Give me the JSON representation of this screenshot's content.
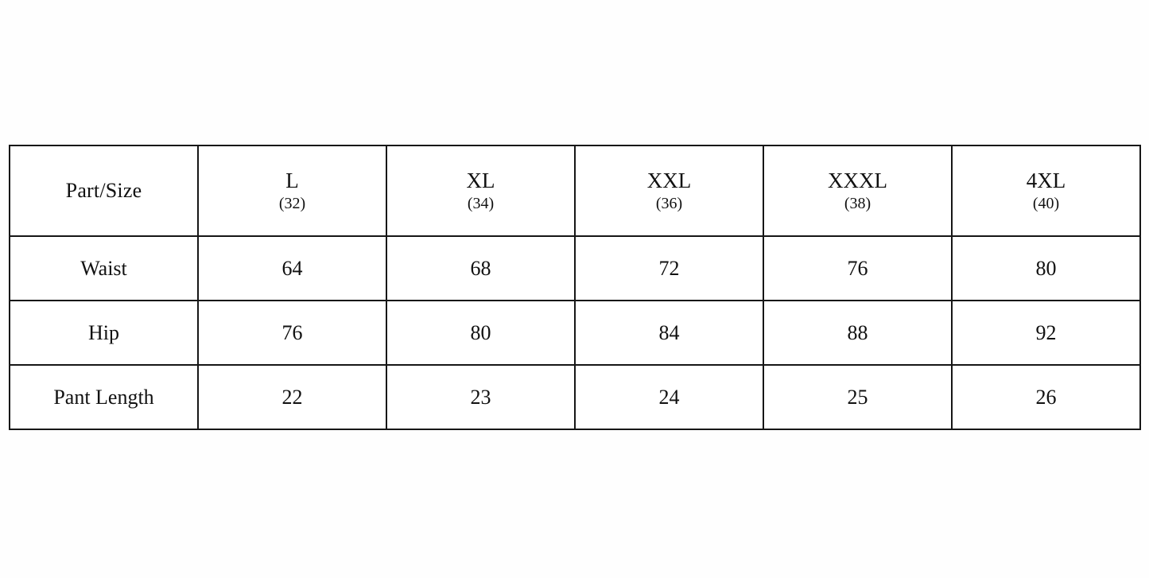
{
  "colors": {
    "background": "#ffffff",
    "border": "#161616",
    "text": "#111111"
  },
  "chart_data": {
    "type": "table",
    "title": "",
    "header": {
      "corner_label": "Part/Size",
      "size_columns": [
        {
          "size": "L",
          "number": "(32)"
        },
        {
          "size": "XL",
          "number": "(34)"
        },
        {
          "size": "XXL",
          "number": "(36)"
        },
        {
          "size": "XXXL",
          "number": "(38)"
        },
        {
          "size": "4XL",
          "number": "(40)"
        }
      ]
    },
    "rows": [
      {
        "label": "Waist",
        "values": [
          64,
          68,
          72,
          76,
          80
        ]
      },
      {
        "label": "Hip",
        "values": [
          76,
          80,
          84,
          88,
          92
        ]
      },
      {
        "label": "Pant Length",
        "values": [
          22,
          23,
          24,
          25,
          26
        ]
      }
    ]
  }
}
